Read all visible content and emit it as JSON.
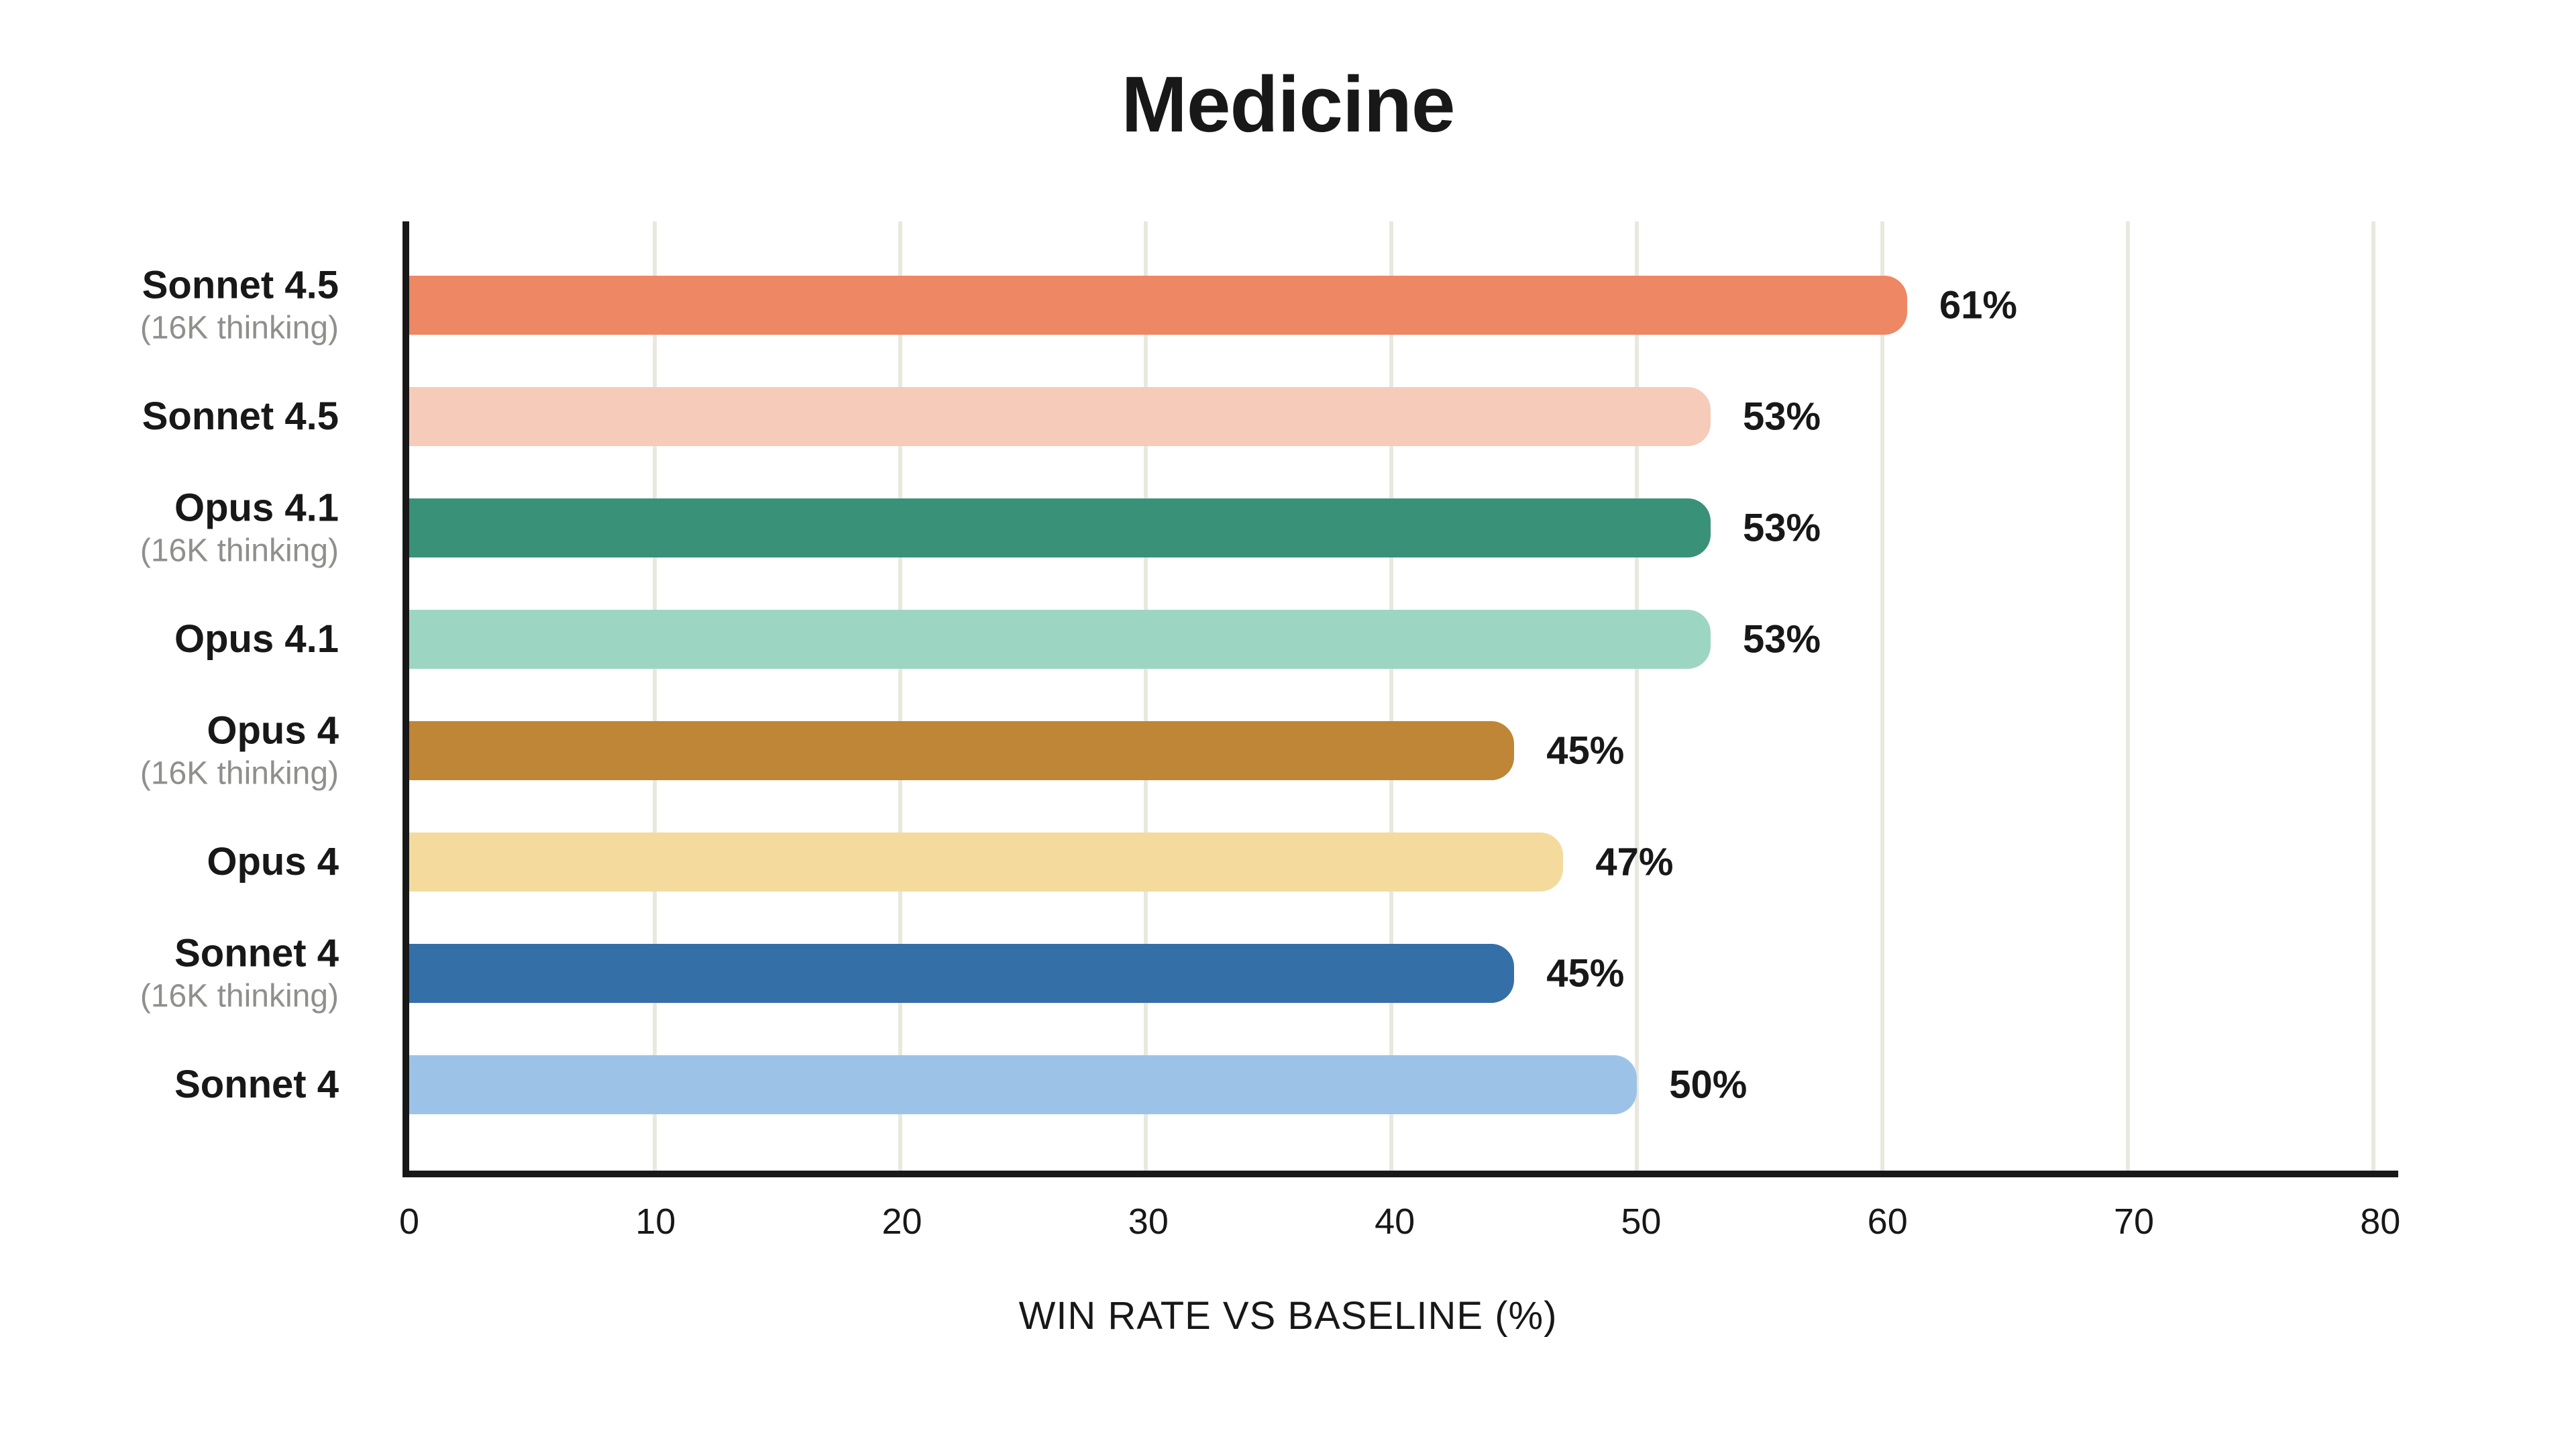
{
  "colors": {
    "background": "#FFFFFF",
    "ink": "#181818",
    "grid": "#E9E8DE",
    "secondary_text": "#8F8F8C"
  },
  "chart_data": {
    "type": "bar",
    "orientation": "horizontal",
    "title": "Medicine",
    "xlabel": "WIN RATE VS BASELINE (%)",
    "ylabel": "",
    "xlim": [
      0,
      81
    ],
    "xticks": [
      0,
      10,
      20,
      30,
      40,
      50,
      60,
      70,
      80
    ],
    "grid": true,
    "legend": "none",
    "categories": [
      "Sonnet 4.5 (16K thinking)",
      "Sonnet 4.5",
      "Opus 4.1 (16K thinking)",
      "Opus 4.1",
      "Opus 4 (16K thinking)",
      "Opus 4",
      "Sonnet 4 (16K thinking)",
      "Sonnet 4"
    ],
    "values": [
      61,
      53,
      53,
      53,
      45,
      47,
      45,
      50
    ],
    "bars": [
      {
        "label": "Sonnet 4.5",
        "sublabel": "(16K thinking)",
        "value": 61,
        "value_label": "61%",
        "color": "#ED8764"
      },
      {
        "label": "Sonnet 4.5",
        "sublabel": "",
        "value": 53,
        "value_label": "53%",
        "color": "#F6CBBA"
      },
      {
        "label": "Opus 4.1",
        "sublabel": "(16K thinking)",
        "value": 53,
        "value_label": "53%",
        "color": "#399178"
      },
      {
        "label": "Opus 4.1",
        "sublabel": "",
        "value": 53,
        "value_label": "53%",
        "color": "#9CD6C3"
      },
      {
        "label": "Opus 4",
        "sublabel": "(16K thinking)",
        "value": 45,
        "value_label": "45%",
        "color": "#BE8636"
      },
      {
        "label": "Opus 4",
        "sublabel": "",
        "value": 47,
        "value_label": "47%",
        "color": "#F4DB9D"
      },
      {
        "label": "Sonnet 4",
        "sublabel": "(16K thinking)",
        "value": 45,
        "value_label": "45%",
        "color": "#356FA7"
      },
      {
        "label": "Sonnet 4",
        "sublabel": "",
        "value": 50,
        "value_label": "50%",
        "color": "#9CC3E7"
      }
    ]
  }
}
